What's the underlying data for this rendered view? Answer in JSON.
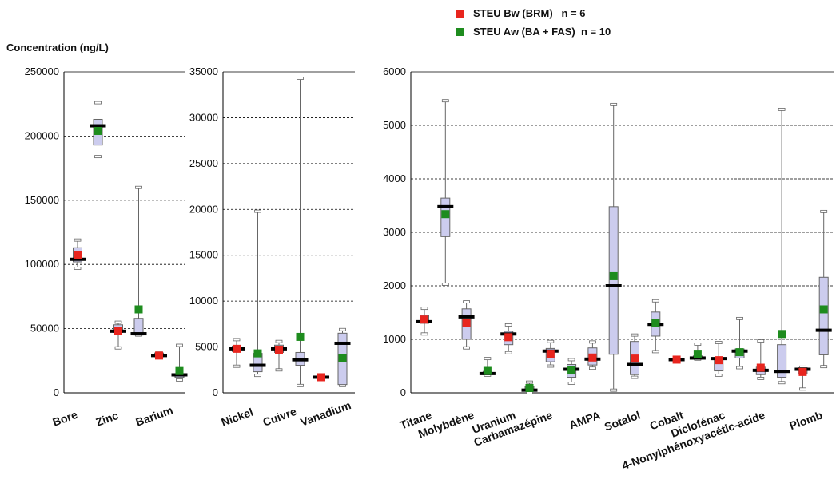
{
  "legend": [
    {
      "label": "STEU Bw (BRM)   n = 6",
      "color": "#e8251e"
    },
    {
      "label": "STEU Aw (BA + FAS)  n = 10",
      "color": "#1e8c1e"
    }
  ],
  "ylabel": "Concentration (ng/L)",
  "colors": {
    "box_fill": "#ccccee",
    "box_stroke": "#666666",
    "median": "#000000",
    "bw": "#e8251e",
    "aw": "#1e8c1e"
  },
  "chart_data": [
    {
      "type": "boxplot",
      "panel": "left",
      "ylim": [
        0,
        250000
      ],
      "yticks": [
        0,
        50000,
        100000,
        150000,
        200000,
        250000
      ],
      "ytick_labels": [
        "0",
        "50000",
        "100000",
        "150000",
        "200000",
        "250000"
      ],
      "grid": "dotted horizontal",
      "categories": [
        "Bore",
        "Zinc",
        "Barium",
        ""
      ],
      "boxes": [
        {
          "min": 97000,
          "q1": 102000,
          "median": 104000,
          "q3": 113000,
          "max": 119000,
          "bw": 107000,
          "aw": null
        },
        {
          "min": 184000,
          "q1": 193000,
          "median": 208000,
          "q3": 213000,
          "max": 226000,
          "bw": null,
          "aw": 204000
        },
        {
          "min": 35000,
          "q1": 47000,
          "median": 48000,
          "q3": 53000,
          "max": 55000,
          "bw": 48000,
          "aw": null
        },
        {
          "min": 45000,
          "q1": 45000,
          "median": 46000,
          "q3": 58000,
          "max": 160000,
          "bw": null,
          "aw": 65000
        },
        {
          "min": 28000,
          "q1": 28000,
          "median": 29000,
          "q3": 31000,
          "max": 31000,
          "bw": 29000,
          "aw": null
        },
        {
          "min": 10000,
          "q1": 12000,
          "median": 14000,
          "q3": 14000,
          "max": 37000,
          "bw": null,
          "aw": 17000
        }
      ]
    },
    {
      "type": "boxplot",
      "panel": "middle",
      "ylim": [
        0,
        35000
      ],
      "yticks": [
        0,
        5000,
        10000,
        15000,
        20000,
        25000,
        30000,
        35000
      ],
      "ytick_labels": [
        "0",
        "5000",
        "10000",
        "15000",
        "20000",
        "25000",
        "30000",
        "35000"
      ],
      "grid": "dotted horizontal",
      "categories": [
        "Nickel",
        "Cuivre",
        "Vanadium",
        ""
      ],
      "boxes": [
        {
          "min": 2900,
          "q1": 4500,
          "median": 4800,
          "q3": 5100,
          "max": 5800,
          "bw": 4800,
          "aw": null
        },
        {
          "min": 1900,
          "q1": 2300,
          "median": 3000,
          "q3": 4300,
          "max": 19800,
          "bw": null,
          "aw": 4300
        },
        {
          "min": 2500,
          "q1": 4400,
          "median": 4800,
          "q3": 5200,
          "max": 5600,
          "bw": 4700,
          "aw": null
        },
        {
          "min": 800,
          "q1": 3000,
          "median": 3600,
          "q3": 4400,
          "max": 34300,
          "bw": null,
          "aw": 6100
        },
        {
          "min": 1600,
          "q1": 1600,
          "median": 1700,
          "q3": 1800,
          "max": 1800,
          "bw": 1700,
          "aw": null
        },
        {
          "min": 800,
          "q1": 900,
          "median": 5400,
          "q3": 6500,
          "max": 6900,
          "bw": null,
          "aw": 3800
        }
      ]
    },
    {
      "type": "boxplot",
      "panel": "right",
      "ylim": [
        0,
        6000
      ],
      "yticks": [
        0,
        1000,
        2000,
        3000,
        4000,
        5000,
        6000
      ],
      "ytick_labels": [
        "0",
        "1000",
        "2000",
        "3000",
        "4000",
        "5000",
        "6000"
      ],
      "grid": "dotted horizontal",
      "categories": [
        "Titane",
        "Molybdène",
        "Uranium",
        "Carbamazépine",
        "AMPA",
        "Sotalol",
        "Cobalt",
        "Diclofénac",
        "4-Nonylphénoxyacétic-acide",
        "Plomb"
      ],
      "boxes": [
        {
          "min": 1100,
          "q1": 1300,
          "median": 1330,
          "q3": 1450,
          "max": 1580,
          "bw": 1370,
          "aw": null
        },
        {
          "min": 2030,
          "q1": 2920,
          "median": 3480,
          "q3": 3640,
          "max": 5460,
          "bw": null,
          "aw": 3340
        },
        {
          "min": 840,
          "q1": 1000,
          "median": 1420,
          "q3": 1570,
          "max": 1700,
          "bw": 1300,
          "aw": null
        },
        {
          "min": 330,
          "q1": 340,
          "median": 360,
          "q3": 400,
          "max": 640,
          "bw": null,
          "aw": 410
        },
        {
          "min": 750,
          "q1": 900,
          "median": 1100,
          "q3": 1150,
          "max": 1270,
          "bw": 1040,
          "aw": null
        },
        {
          "min": 0,
          "q1": 30,
          "median": 50,
          "q3": 120,
          "max": 200,
          "bw": null,
          "aw": 90
        },
        {
          "min": 500,
          "q1": 580,
          "median": 780,
          "q3": 830,
          "max": 960,
          "bw": 730,
          "aw": null
        },
        {
          "min": 180,
          "q1": 290,
          "median": 440,
          "q3": 530,
          "max": 620,
          "bw": null,
          "aw": 430
        },
        {
          "min": 460,
          "q1": 520,
          "median": 630,
          "q3": 840,
          "max": 950,
          "bw": 660,
          "aw": null
        },
        {
          "min": 50,
          "q1": 720,
          "median": 2000,
          "q3": 3480,
          "max": 5390,
          "bw": null,
          "aw": 2180
        },
        {
          "min": 290,
          "q1": 340,
          "median": 530,
          "q3": 960,
          "max": 1080,
          "bw": 640,
          "aw": null
        },
        {
          "min": 770,
          "q1": 1060,
          "median": 1280,
          "q3": 1510,
          "max": 1720,
          "bw": null,
          "aw": 1300
        },
        {
          "min": 600,
          "q1": 600,
          "median": 620,
          "q3": 640,
          "max": 640,
          "bw": 620,
          "aw": null
        },
        {
          "min": 630,
          "q1": 640,
          "median": 650,
          "q3": 690,
          "max": 910,
          "bw": null,
          "aw": 730
        },
        {
          "min": 330,
          "q1": 410,
          "median": 640,
          "q3": 660,
          "max": 940,
          "bw": 610,
          "aw": null
        },
        {
          "min": 470,
          "q1": 650,
          "median": 780,
          "q3": 820,
          "max": 1390,
          "bw": null,
          "aw": 760
        },
        {
          "min": 270,
          "q1": 340,
          "median": 420,
          "q3": 480,
          "max": 970,
          "bw": 470,
          "aw": null
        },
        {
          "min": 190,
          "q1": 290,
          "median": 400,
          "q3": 900,
          "max": 5300,
          "bw": null,
          "aw": 1100
        },
        {
          "min": 70,
          "q1": 350,
          "median": 440,
          "q3": 470,
          "max": 480,
          "bw": 390,
          "aw": null
        },
        {
          "min": 490,
          "q1": 710,
          "median": 1170,
          "q3": 2160,
          "max": 3390,
          "bw": null,
          "aw": 1560
        }
      ]
    }
  ]
}
